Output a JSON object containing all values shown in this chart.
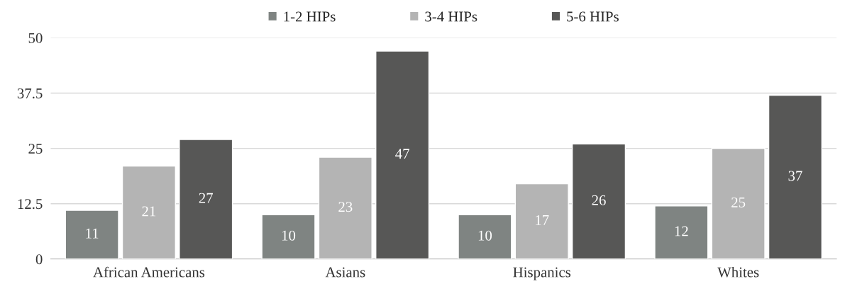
{
  "chart_data": {
    "type": "bar",
    "categories": [
      "African Americans",
      "Asians",
      "Hispanics",
      "Whites"
    ],
    "series": [
      {
        "name": "1-2 HIPs",
        "color": "#7f8482",
        "values": [
          11,
          10,
          10,
          12
        ]
      },
      {
        "name": "3-4 HIPs",
        "color": "#b4b4b4",
        "values": [
          21,
          23,
          17,
          25
        ]
      },
      {
        "name": "5-6 HIPs",
        "color": "#575756",
        "values": [
          27,
          47,
          26,
          37
        ]
      }
    ],
    "ylim": [
      0,
      50
    ],
    "yticks": [
      0,
      12.5,
      25,
      37.5,
      50
    ],
    "grid": "y",
    "legend": "top",
    "data_labels": true
  }
}
